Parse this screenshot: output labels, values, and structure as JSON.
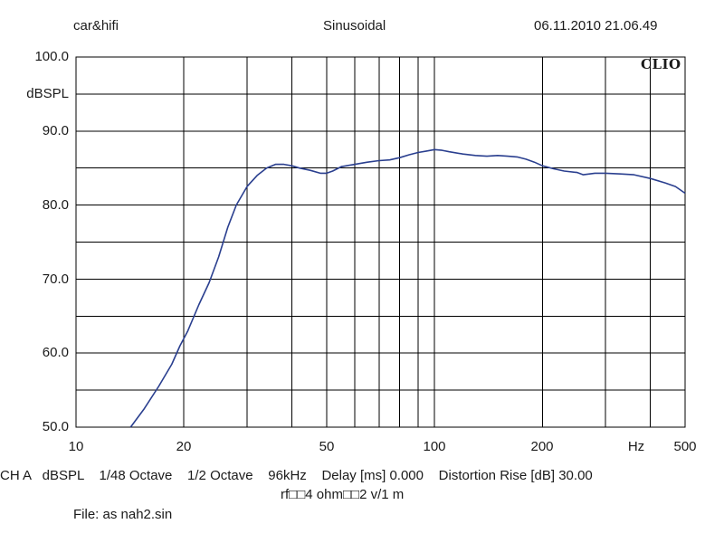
{
  "header": {
    "left": "car&hifi",
    "center": "Sinusoidal",
    "right": "06.11.2010 21.06.49"
  },
  "brand": "CLIO",
  "footer": {
    "line1": "CH A   dBSPL    1/48 Octave    1/2 Octave    96kHz    Delay [ms] 0.000    Distortion Rise [dB] 30.00",
    "line2": "rf□□4 ohm□□2 v/1 m",
    "line3": "File: as nah2.sin"
  },
  "colors": {
    "curve": "#2a3f8f",
    "grid": "#000000",
    "frame": "#000000"
  },
  "chart_data": {
    "type": "line",
    "title": "Sinusoidal",
    "xlabel": "Hz",
    "ylabel": "dBSPL",
    "xscale": "log",
    "xlim": [
      10,
      500
    ],
    "ylim": [
      50,
      100
    ],
    "grid": true,
    "x_tick_labels": [
      "10",
      "20",
      "50",
      "100",
      "200",
      "500"
    ],
    "y_tick_labels": [
      "100.0",
      "90.0",
      "80.0",
      "70.0",
      "60.0",
      "50.0"
    ],
    "series": [
      {
        "values": [
          [
            14.2,
            50.0
          ],
          [
            15.5,
            52.5
          ],
          [
            17,
            55.5
          ],
          [
            18.5,
            58.5
          ],
          [
            19.5,
            61.0
          ],
          [
            20.5,
            63.0
          ],
          [
            22,
            66.5
          ],
          [
            23.5,
            69.5
          ],
          [
            25,
            73.0
          ],
          [
            26.5,
            77.0
          ],
          [
            28,
            80.0
          ],
          [
            30,
            82.5
          ],
          [
            32,
            84.0
          ],
          [
            34,
            85.0
          ],
          [
            36,
            85.5
          ],
          [
            38,
            85.5
          ],
          [
            40,
            85.3
          ],
          [
            42,
            85.0
          ],
          [
            45,
            84.7
          ],
          [
            48,
            84.3
          ],
          [
            50,
            84.3
          ],
          [
            52,
            84.6
          ],
          [
            55,
            85.2
          ],
          [
            60,
            85.5
          ],
          [
            65,
            85.8
          ],
          [
            70,
            86.0
          ],
          [
            75,
            86.1
          ],
          [
            80,
            86.4
          ],
          [
            85,
            86.8
          ],
          [
            90,
            87.1
          ],
          [
            95,
            87.3
          ],
          [
            100,
            87.5
          ],
          [
            105,
            87.4
          ],
          [
            110,
            87.2
          ],
          [
            120,
            86.9
          ],
          [
            130,
            86.7
          ],
          [
            140,
            86.6
          ],
          [
            150,
            86.7
          ],
          [
            160,
            86.6
          ],
          [
            170,
            86.5
          ],
          [
            180,
            86.2
          ],
          [
            190,
            85.8
          ],
          [
            200,
            85.3
          ],
          [
            215,
            84.9
          ],
          [
            230,
            84.6
          ],
          [
            250,
            84.4
          ],
          [
            260,
            84.1
          ],
          [
            280,
            84.3
          ],
          [
            300,
            84.3
          ],
          [
            330,
            84.2
          ],
          [
            360,
            84.1
          ],
          [
            400,
            83.6
          ],
          [
            440,
            83.0
          ],
          [
            470,
            82.5
          ],
          [
            500,
            81.6
          ]
        ]
      }
    ]
  }
}
